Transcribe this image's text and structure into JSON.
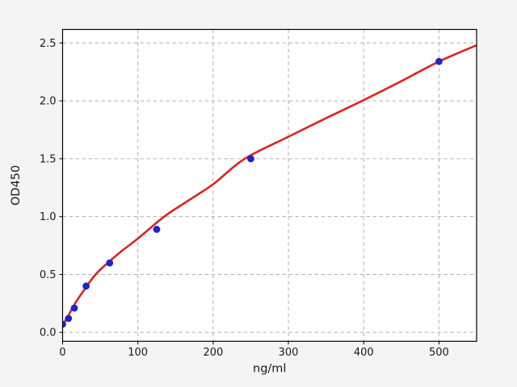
{
  "colors": {
    "figure_bg": "#f4f4f4",
    "plot_bg": "#ffffff",
    "grid": "#b0b0b0",
    "spine": "#000000",
    "tick": "#000000",
    "text": "#1a1a1a",
    "marker": "#2121cf",
    "fit_line": "#dd2222"
  },
  "chart_data": {
    "type": "scatter",
    "title": "",
    "xlabel": "ng/ml",
    "ylabel": "OD450",
    "xlim": [
      0,
      550
    ],
    "ylim": [
      -0.077,
      2.617
    ],
    "grid": "dashed",
    "legend": "none",
    "x_ticks": [
      0,
      100,
      200,
      300,
      400,
      500
    ],
    "x_tick_labels": [
      "0",
      "100",
      "200",
      "300",
      "400",
      "500"
    ],
    "y_ticks": [
      0.0,
      0.5,
      1.0,
      1.5,
      2.0,
      2.5
    ],
    "y_tick_labels": [
      "0.0",
      "0.5",
      "1.0",
      "1.5",
      "2.0",
      "2.5"
    ],
    "series": [
      {
        "name": "standard-points",
        "type": "scatter",
        "marker": "circle",
        "color": "#2121cf",
        "x": [
          0,
          7.8,
          15.6,
          31.25,
          62.5,
          125,
          250,
          500
        ],
        "y": [
          0.07,
          0.12,
          0.21,
          0.4,
          0.6,
          0.89,
          1.5,
          2.34
        ]
      },
      {
        "name": "fit-curve",
        "type": "line",
        "color": "#dd2222",
        "x": [
          0,
          8,
          16.6,
          30,
          43.8,
          60,
          80,
          100,
          135,
          165,
          200,
          242,
          300,
          350,
          398,
          450,
          500,
          550
        ],
        "y": [
          0.06,
          0.15,
          0.25,
          0.38,
          0.5,
          0.6,
          0.71,
          0.81,
          1.0,
          1.13,
          1.28,
          1.5,
          1.69,
          1.85,
          2.0,
          2.17,
          2.34,
          2.48
        ]
      }
    ]
  }
}
